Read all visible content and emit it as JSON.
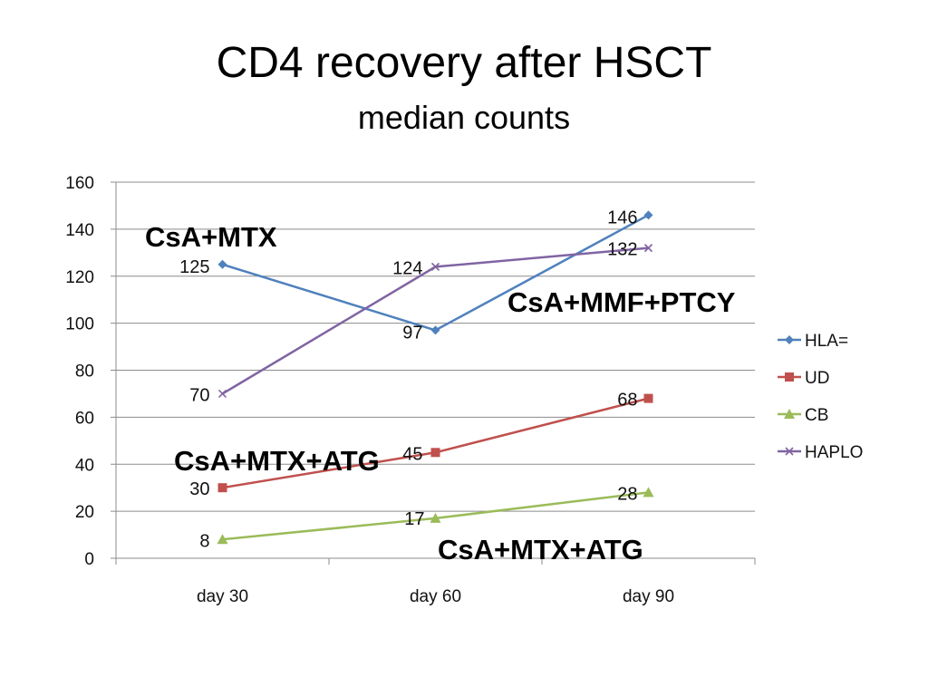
{
  "title": "CD4 recovery after HSCT",
  "subtitle": "median counts",
  "annotations": {
    "hla": "CsA+MTX",
    "haplo": "CsA+MMF+PTCY",
    "ud": "CsA+MTX+ATG",
    "cb": "CsA+MTX+ATG"
  },
  "chart_data": {
    "type": "line",
    "categories": [
      "day 30",
      "day 60",
      "day 90"
    ],
    "ylim": [
      0,
      160
    ],
    "yticks": [
      0,
      20,
      40,
      60,
      80,
      100,
      120,
      140,
      160
    ],
    "grid": true,
    "legend": "right",
    "series": [
      {
        "name": "HLA=",
        "values": [
          125,
          97,
          146
        ],
        "color": "#4f81bd",
        "marker": "diamond"
      },
      {
        "name": "UD",
        "values": [
          30,
          45,
          68
        ],
        "color": "#c0504d",
        "marker": "square"
      },
      {
        "name": "CB",
        "values": [
          8,
          17,
          28
        ],
        "color": "#9bbb59",
        "marker": "triangle"
      },
      {
        "name": "HAPLO",
        "values": [
          70,
          124,
          132
        ],
        "color": "#8064a2",
        "marker": "x"
      }
    ]
  }
}
